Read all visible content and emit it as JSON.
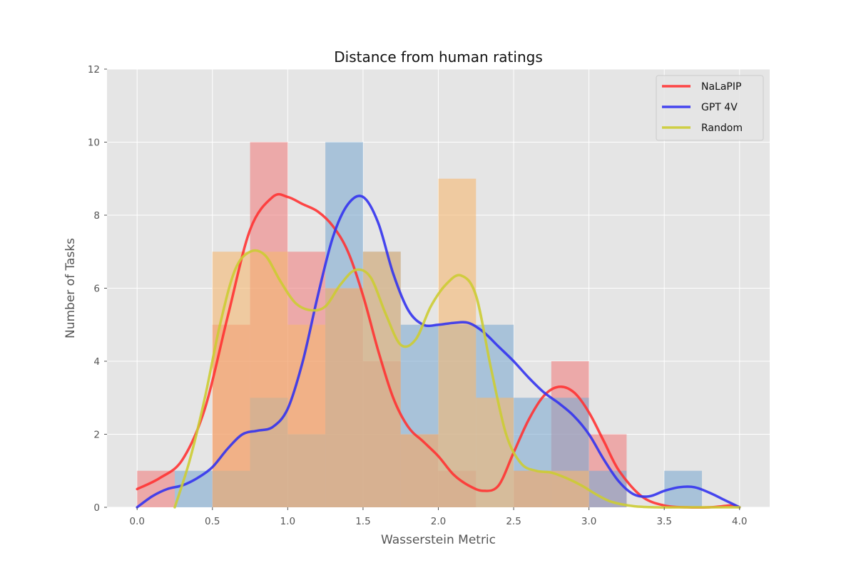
{
  "chart_data": {
    "type": "histogram",
    "title": "Distance from human ratings",
    "xlabel": "Wasserstein Metric",
    "ylabel": "Number of Tasks",
    "xlim": [
      -0.2,
      4.2
    ],
    "ylim": [
      0,
      12
    ],
    "xticks": [
      "0.0",
      "0.5",
      "1.0",
      "1.5",
      "2.0",
      "2.5",
      "3.0",
      "3.5",
      "4.0"
    ],
    "yticks": [
      "0",
      "2",
      "4",
      "6",
      "8",
      "10",
      "12"
    ],
    "grid": true,
    "legend_position": "top-right",
    "bin_width": 0.25,
    "bin_starts": [
      0.0,
      0.25,
      0.5,
      0.75,
      1.0,
      1.25,
      1.5,
      1.75,
      2.0,
      2.25,
      2.5,
      2.75,
      3.0,
      3.25,
      3.5,
      3.75
    ],
    "series": [
      {
        "name": "NaLaPIP",
        "color": "#ff3333",
        "hist_color": "#f08080",
        "counts": [
          1,
          0,
          5,
          10,
          7,
          6,
          4,
          2,
          1,
          0,
          1,
          4,
          2,
          0,
          0,
          0
        ],
        "kde_x": [
          0.0,
          0.15,
          0.3,
          0.45,
          0.6,
          0.75,
          0.9,
          1.0,
          1.1,
          1.2,
          1.3,
          1.4,
          1.5,
          1.6,
          1.7,
          1.8,
          1.9,
          2.0,
          2.1,
          2.2,
          2.3,
          2.4,
          2.5,
          2.6,
          2.7,
          2.8,
          2.9,
          3.0,
          3.1,
          3.2,
          3.35,
          3.5,
          3.65,
          3.8,
          3.95,
          4.0
        ],
        "kde_y": [
          0.5,
          0.8,
          1.3,
          2.7,
          5.2,
          7.6,
          8.5,
          8.5,
          8.3,
          8.1,
          7.7,
          7.0,
          5.8,
          4.3,
          3.0,
          2.2,
          1.8,
          1.4,
          0.9,
          0.6,
          0.45,
          0.6,
          1.5,
          2.4,
          3.05,
          3.3,
          3.15,
          2.6,
          1.8,
          1.0,
          0.3,
          0.05,
          0.0,
          0.0,
          0.05,
          0.0
        ]
      },
      {
        "name": "GPT 4V",
        "color": "#3333ee",
        "hist_color": "#7faad0",
        "counts": [
          0,
          1,
          1,
          3,
          2,
          10,
          7,
          5,
          5,
          5,
          3,
          3,
          1,
          0,
          1,
          0
        ],
        "kde_x": [
          0.0,
          0.1,
          0.2,
          0.3,
          0.4,
          0.5,
          0.6,
          0.7,
          0.8,
          0.9,
          1.0,
          1.1,
          1.2,
          1.3,
          1.4,
          1.5,
          1.6,
          1.7,
          1.8,
          1.9,
          2.0,
          2.1,
          2.2,
          2.3,
          2.4,
          2.5,
          2.6,
          2.7,
          2.8,
          2.9,
          3.0,
          3.1,
          3.2,
          3.3,
          3.4,
          3.5,
          3.6,
          3.7,
          3.8,
          3.9,
          4.0
        ],
        "kde_y": [
          0.0,
          0.3,
          0.5,
          0.6,
          0.8,
          1.1,
          1.6,
          2.0,
          2.1,
          2.2,
          2.7,
          4.0,
          5.8,
          7.4,
          8.3,
          8.5,
          7.8,
          6.4,
          5.4,
          5.0,
          5.0,
          5.05,
          5.05,
          4.8,
          4.4,
          4.0,
          3.55,
          3.15,
          2.85,
          2.5,
          2.0,
          1.3,
          0.7,
          0.35,
          0.3,
          0.45,
          0.55,
          0.55,
          0.4,
          0.2,
          0.0
        ]
      },
      {
        "name": "Random",
        "color": "#cccc33",
        "hist_color": "#f5b772",
        "counts": [
          0,
          0,
          7,
          7,
          5,
          6,
          7,
          2,
          9,
          3,
          1,
          1,
          0,
          0,
          0,
          0
        ],
        "kde_x": [
          0.25,
          0.35,
          0.45,
          0.55,
          0.65,
          0.75,
          0.85,
          0.95,
          1.05,
          1.15,
          1.25,
          1.35,
          1.45,
          1.55,
          1.65,
          1.75,
          1.85,
          1.95,
          2.05,
          2.15,
          2.25,
          2.35,
          2.45,
          2.55,
          2.65,
          2.75,
          2.85,
          2.95,
          3.05,
          3.15,
          3.3,
          3.45,
          3.6,
          3.8,
          4.0
        ],
        "kde_y": [
          0.0,
          1.3,
          3.0,
          5.0,
          6.5,
          7.0,
          6.9,
          6.2,
          5.6,
          5.4,
          5.5,
          6.1,
          6.5,
          6.3,
          5.3,
          4.45,
          4.6,
          5.5,
          6.1,
          6.35,
          5.8,
          3.8,
          2.0,
          1.2,
          1.0,
          0.95,
          0.8,
          0.6,
          0.35,
          0.15,
          0.03,
          0.0,
          0.0,
          0.0,
          0.0
        ]
      }
    ]
  }
}
